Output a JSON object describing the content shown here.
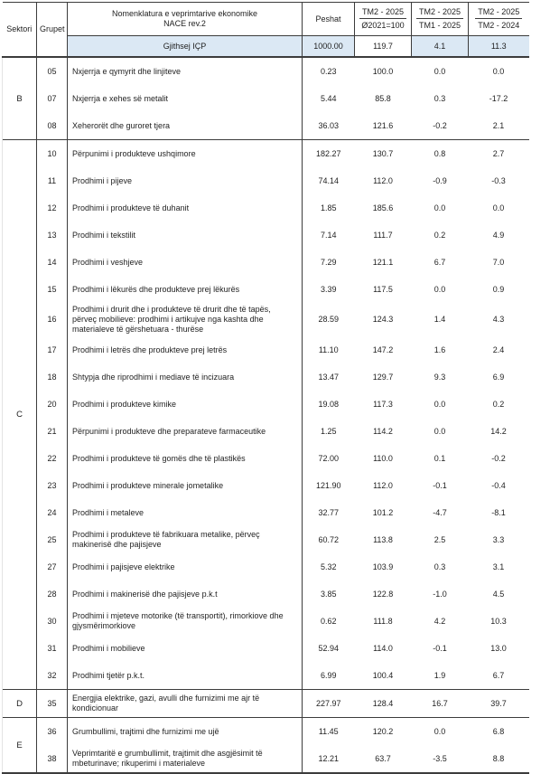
{
  "colors": {
    "highlight_row": "#dbe8f4",
    "border": "#3c3c3c",
    "text": "#1f1f1f",
    "background": "#ffffff"
  },
  "header": {
    "sektori": "Sektori",
    "grupet": "Grupet",
    "nomenklatura_line1": "Nomenklatura e veprimtarive ekonomike",
    "nomenklatura_line2": "NACE rev.2",
    "peshat": "Peshat",
    "ratio1_num": "TM2 - 2025",
    "ratio1_den": "Ø2021=100",
    "ratio2_num": "TM2 - 2025",
    "ratio2_den": "TM1 - 2025",
    "ratio3_num": "TM2 - 2025",
    "ratio3_den": "TM2 - 2024"
  },
  "total_row": {
    "label": "Gjithsej IÇP",
    "peshat": "1000.00",
    "v1": "119.7",
    "v2": "4.1",
    "v3": "11.3"
  },
  "sectors": [
    {
      "code": "B",
      "rows": [
        {
          "group": "05",
          "name": "Nxjerrja e qymyrit dhe linjiteve",
          "peshat": "0.23",
          "values": [
            "100.0",
            "0.0",
            "0.0"
          ]
        },
        {
          "group": "07",
          "name": "Nxjerrja e xehes së metalit",
          "peshat": "5.44",
          "values": [
            "85.8",
            "0.3",
            "-17.2"
          ]
        },
        {
          "group": "08",
          "name": "Xeherorët dhe guroret tjera",
          "peshat": "36.03",
          "values": [
            "121.6",
            "-0.2",
            "2.1"
          ]
        }
      ]
    },
    {
      "code": "C",
      "rows": [
        {
          "group": "10",
          "name": "Përpunimi i produkteve ushqimore",
          "peshat": "182.27",
          "values": [
            "130.7",
            "0.8",
            "2.7"
          ]
        },
        {
          "group": "11",
          "name": "Prodhimi i pijeve",
          "peshat": "74.14",
          "values": [
            "112.0",
            "-0.9",
            "-0.3"
          ]
        },
        {
          "group": "12",
          "name": "Prodhimi i produkteve të duhanit",
          "peshat": "1.85",
          "values": [
            "185.6",
            "0.0",
            "0.0"
          ]
        },
        {
          "group": "13",
          "name": "Prodhimi i tekstilit",
          "peshat": "7.14",
          "values": [
            "111.7",
            "0.2",
            "4.9"
          ]
        },
        {
          "group": "14",
          "name": "Prodhimi i veshjeve",
          "peshat": "7.29",
          "values": [
            "121.1",
            "6.7",
            "7.0"
          ]
        },
        {
          "group": "15",
          "name": "Prodhimi i lëkurës dhe produkteve prej lëkurës",
          "peshat": "3.39",
          "values": [
            "117.5",
            "0.0",
            "0.9"
          ]
        },
        {
          "group": "16",
          "name": "Prodhimi i drurit dhe i produkteve të drurit dhe të tapës, përveç mobilieve: prodhimi i artikujve nga kashta dhe materialeve të gërshetuara - thurëse",
          "peshat": "28.59",
          "values": [
            "124.3",
            "1.4",
            "4.3"
          ]
        },
        {
          "group": "17",
          "name": "Prodhimi i letrës dhe produkteve prej letrës",
          "peshat": "11.10",
          "values": [
            "147.2",
            "1.6",
            "2.4"
          ]
        },
        {
          "group": "18",
          "name": "Shtypja dhe riprodhimi i mediave të incizuara",
          "peshat": "13.47",
          "values": [
            "129.7",
            "9.3",
            "6.9"
          ]
        },
        {
          "group": "20",
          "name": "Prodhimi i produkteve kimike",
          "peshat": "19.08",
          "values": [
            "117.3",
            "0.0",
            "0.2"
          ]
        },
        {
          "group": "21",
          "name": "Përpunimi i produkteve dhe preparateve farmaceutike",
          "peshat": "1.25",
          "values": [
            "114.2",
            "0.0",
            "14.2"
          ]
        },
        {
          "group": "22",
          "name": "Prodhimi i produkteve të gomës dhe të plastikës",
          "peshat": "72.00",
          "values": [
            "110.0",
            "0.1",
            "-0.2"
          ]
        },
        {
          "group": "23",
          "name": "Prodhimi i produkteve minerale jometalike",
          "peshat": "121.90",
          "values": [
            "112.0",
            "-0.1",
            "-0.4"
          ]
        },
        {
          "group": "24",
          "name": "Prodhimi i metaleve",
          "peshat": "32.77",
          "values": [
            "101.2",
            "-4.7",
            "-8.1"
          ]
        },
        {
          "group": "25",
          "name": "Prodhimi i produkteve të fabrikuara metalike, përveç makinerisë dhe pajisjeve",
          "peshat": "60.72",
          "values": [
            "113.8",
            "2.5",
            "3.3"
          ]
        },
        {
          "group": "27",
          "name": "Prodhimi i pajisjeve elektrike",
          "peshat": "5.32",
          "values": [
            "103.9",
            "0.3",
            "3.1"
          ]
        },
        {
          "group": "28",
          "name": "Prodhimi i makinerisë dhe pajisjeve p.k.t",
          "peshat": "3.85",
          "values": [
            "122.8",
            "-1.0",
            "4.5"
          ]
        },
        {
          "group": "30",
          "name": "Prodhimi i mjeteve motorike (të transportit), rimorkiove dhe gjysmërimorkiove",
          "peshat": "0.62",
          "values": [
            "111.8",
            "4.2",
            "10.3"
          ]
        },
        {
          "group": "31",
          "name": "Prodhimi i mobilieve",
          "peshat": "52.94",
          "values": [
            "114.0",
            "-0.1",
            "13.0"
          ]
        },
        {
          "group": "32",
          "name": "Prodhimi tjetër p.k.t.",
          "peshat": "6.99",
          "values": [
            "100.4",
            "1.9",
            "6.7"
          ]
        }
      ]
    },
    {
      "code": "D",
      "rows": [
        {
          "group": "35",
          "name": "Energjia elektrike, gazi, avulli dhe furnizimi me ajr të kondicionuar",
          "peshat": "227.97",
          "values": [
            "128.4",
            "16.7",
            "39.7"
          ]
        }
      ]
    },
    {
      "code": "E",
      "rows": [
        {
          "group": "36",
          "name": "Grumbullimi, trajtimi dhe furnizimi me ujë",
          "peshat": "11.45",
          "values": [
            "120.2",
            "0.0",
            "6.8"
          ]
        },
        {
          "group": "38",
          "name": "Veprimtaritë e grumbullimit, trajtimit dhe asgjësimit të mbeturinave; rikuperimi i materialeve",
          "peshat": "12.21",
          "values": [
            "63.7",
            "-3.5",
            "8.8"
          ]
        }
      ]
    }
  ]
}
